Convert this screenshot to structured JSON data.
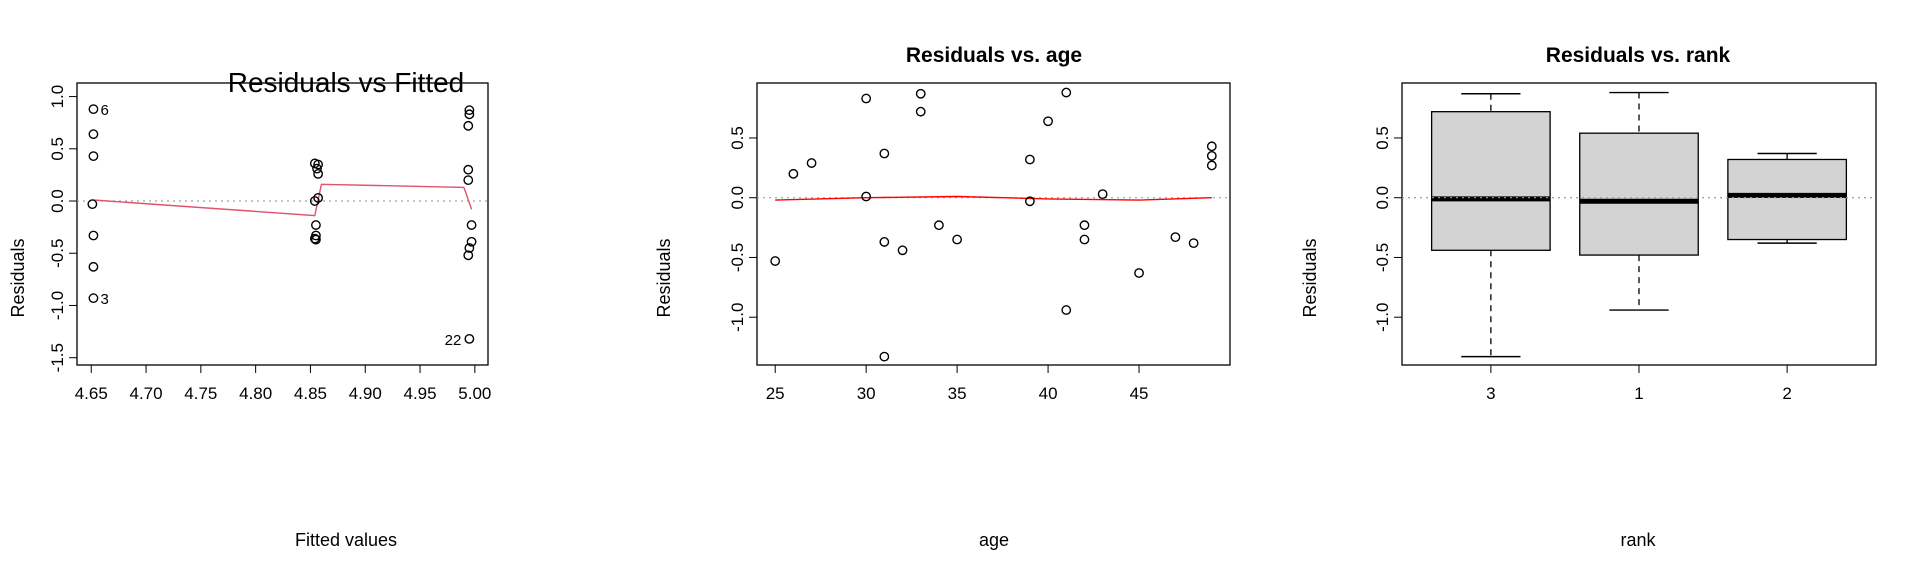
{
  "chart_data": [
    {
      "type": "scatter",
      "title": "Residuals vs Fitted",
      "xlabel": "Fitted values",
      "ylabel": "Residuals",
      "xlim": [
        4.637,
        5.012
      ],
      "ylim": [
        -1.57,
        1.13
      ],
      "xticks": [
        "4.65",
        "4.70",
        "4.75",
        "4.80",
        "4.85",
        "4.90",
        "4.95",
        "5.00"
      ],
      "yticks": [
        "-1.5",
        "-1.0",
        "-0.5",
        "0.0",
        "0.5",
        "1.0"
      ],
      "zero_line": true,
      "points": [
        {
          "x": 4.652,
          "y": 0.88,
          "label": "6"
        },
        {
          "x": 4.652,
          "y": 0.64
        },
        {
          "x": 4.652,
          "y": 0.43
        },
        {
          "x": 4.651,
          "y": -0.03
        },
        {
          "x": 4.652,
          "y": -0.33
        },
        {
          "x": 4.652,
          "y": -0.63
        },
        {
          "x": 4.652,
          "y": -0.93,
          "label": "3"
        },
        {
          "x": 4.854,
          "y": 0.36
        },
        {
          "x": 4.857,
          "y": 0.35
        },
        {
          "x": 4.856,
          "y": 0.31
        },
        {
          "x": 4.857,
          "y": 0.26
        },
        {
          "x": 4.857,
          "y": 0.03
        },
        {
          "x": 4.854,
          "y": 0.0
        },
        {
          "x": 4.855,
          "y": -0.23
        },
        {
          "x": 4.855,
          "y": -0.33
        },
        {
          "x": 4.855,
          "y": -0.37
        },
        {
          "x": 4.854,
          "y": -0.36
        },
        {
          "x": 4.995,
          "y": 0.87
        },
        {
          "x": 4.995,
          "y": 0.83
        },
        {
          "x": 4.994,
          "y": 0.72
        },
        {
          "x": 4.994,
          "y": 0.3
        },
        {
          "x": 4.994,
          "y": 0.2
        },
        {
          "x": 4.997,
          "y": -0.23
        },
        {
          "x": 4.997,
          "y": -0.39
        },
        {
          "x": 4.995,
          "y": -0.45
        },
        {
          "x": 4.994,
          "y": -0.52
        },
        {
          "x": 4.995,
          "y": -1.32,
          "label": "22"
        }
      ],
      "smoother": [
        [
          4.652,
          0.01
        ],
        [
          4.854,
          -0.14
        ],
        [
          4.857,
          0.01
        ],
        [
          4.86,
          0.16
        ],
        [
          4.99,
          0.13
        ],
        [
          4.997,
          -0.08
        ]
      ],
      "smoother_color": "#df536b"
    },
    {
      "type": "scatter",
      "title": "Residuals vs. age",
      "xlabel": "age",
      "ylabel": "Residuals",
      "xlim": [
        24.0,
        50.0
      ],
      "ylim": [
        -1.4,
        0.96
      ],
      "xticks": [
        "25",
        "30",
        "35",
        "40",
        "45"
      ],
      "yticks": [
        "-1.0",
        "-0.5",
        "0.0",
        "0.5"
      ],
      "zero_line": true,
      "points": [
        {
          "x": 25,
          "y": -0.53
        },
        {
          "x": 26,
          "y": 0.2
        },
        {
          "x": 27,
          "y": 0.29
        },
        {
          "x": 30,
          "y": 0.83
        },
        {
          "x": 30,
          "y": 0.01
        },
        {
          "x": 31,
          "y": 0.37
        },
        {
          "x": 31,
          "y": -0.37
        },
        {
          "x": 31,
          "y": -1.33
        },
        {
          "x": 32,
          "y": -0.44
        },
        {
          "x": 33,
          "y": 0.87
        },
        {
          "x": 33,
          "y": 0.72
        },
        {
          "x": 34,
          "y": -0.23
        },
        {
          "x": 35,
          "y": -0.35
        },
        {
          "x": 39,
          "y": 0.32
        },
        {
          "x": 39,
          "y": -0.03
        },
        {
          "x": 40,
          "y": 0.64
        },
        {
          "x": 41,
          "y": 0.88
        },
        {
          "x": 41,
          "y": -0.94
        },
        {
          "x": 42,
          "y": -0.23
        },
        {
          "x": 42,
          "y": -0.35
        },
        {
          "x": 43,
          "y": 0.03
        },
        {
          "x": 45,
          "y": -0.63
        },
        {
          "x": 47,
          "y": -0.33
        },
        {
          "x": 48,
          "y": -0.38
        },
        {
          "x": 49,
          "y": 0.43
        },
        {
          "x": 49,
          "y": 0.35
        },
        {
          "x": 49,
          "y": 0.27
        }
      ],
      "smoother": [
        [
          25,
          -0.02
        ],
        [
          30,
          0.0
        ],
        [
          35,
          0.01
        ],
        [
          40,
          -0.01
        ],
        [
          45,
          -0.02
        ],
        [
          49,
          0.0
        ]
      ],
      "smoother_color": "#ff0000"
    },
    {
      "type": "box",
      "title": "Residuals vs. rank",
      "xlabel": "rank",
      "ylabel": "Residuals",
      "ylim": [
        -1.4,
        0.96
      ],
      "yticks": [
        "-1.0",
        "-0.5",
        "0.0",
        "0.5"
      ],
      "categories": [
        "3",
        "1",
        "2"
      ],
      "zero_line": true,
      "boxes": [
        {
          "min": -1.33,
          "q1": -0.44,
          "median": -0.01,
          "q3": 0.72,
          "max": 0.87
        },
        {
          "min": -0.94,
          "q1": -0.48,
          "median": -0.03,
          "q3": 0.54,
          "max": 0.88
        },
        {
          "min": -0.38,
          "q1": -0.35,
          "median": 0.02,
          "q3": 0.32,
          "max": 0.37
        }
      ],
      "box_fill": "#d3d3d3"
    }
  ]
}
